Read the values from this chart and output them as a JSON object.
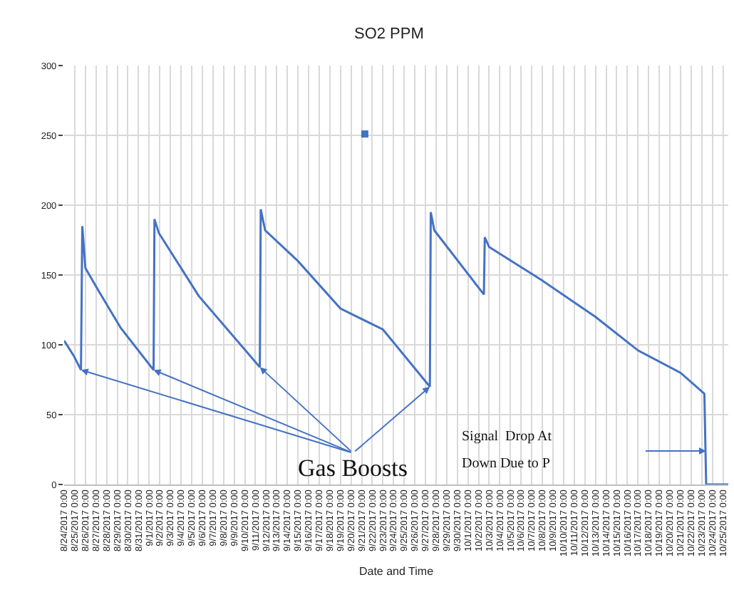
{
  "chart_data": {
    "type": "line",
    "title": "SO2 PPM",
    "xlabel": "Date and Time",
    "x": [
      "2017-08-24T00:00",
      "2017-08-24T22:00",
      "2017-08-25T14:00",
      "2017-08-25T17:00",
      "2017-08-26T00:00",
      "2017-08-27T07:00",
      "2017-08-29T08:00",
      "2017-09-01T10:00",
      "2017-09-01T12:00",
      "2017-09-01T22:00",
      "2017-09-05T16:00",
      "2017-09-11T10:00",
      "2017-09-11T12:00",
      "2017-09-11T22:00",
      "2017-09-15T00:00",
      "2017-09-19T00:00",
      "2017-09-23T00:00",
      "2017-09-27T10:00",
      "2017-09-27T12:00",
      "2017-09-27T20:00",
      "2017-10-02T12:00",
      "2017-10-02T14:00",
      "2017-10-03T00:00",
      "2017-10-08T00:00",
      "2017-10-13T00:00",
      "2017-10-17T00:00",
      "2017-10-21T00:00",
      "2017-10-23T06:00",
      "2017-10-23T10:00",
      "2017-10-25T12:00"
    ],
    "series": [
      {
        "color": "#4472c4",
        "values": [
          103,
          92,
          82,
          185,
          155,
          138,
          112,
          82,
          190,
          180,
          135,
          84,
          197,
          182,
          160,
          126,
          111,
          70,
          195,
          182,
          136,
          177,
          170,
          146,
          120,
          96,
          80,
          65,
          0,
          0
        ]
      },
      {
        "type": "scatter",
        "color": "#4472c4",
        "marker": "square",
        "x": [
          "2017-09-21T07:00"
        ],
        "values": [
          251
        ]
      }
    ],
    "xlim": [
      "2017-08-24T00:00",
      "2017-10-25T12:00"
    ],
    "ylim": [
      0,
      300
    ],
    "yticks": [
      0,
      50,
      100,
      150,
      200,
      250,
      300
    ],
    "xticks": [
      {
        "value": "2017-08-24",
        "label": "8/24/2017 0:00"
      },
      {
        "value": "2017-08-25",
        "label": "8/25/2017 0:00"
      },
      {
        "value": "2017-08-26",
        "label": "8/26/2017 0:00"
      },
      {
        "value": "2017-08-27",
        "label": "8/27/2017 0:00"
      },
      {
        "value": "2017-08-28",
        "label": "8/28/2017 0:00"
      },
      {
        "value": "2017-08-29",
        "label": "8/29/2017 0:00"
      },
      {
        "value": "2017-08-30",
        "label": "8/30/2017 0:00"
      },
      {
        "value": "2017-08-31",
        "label": "8/31/2017 0:00"
      },
      {
        "value": "2017-09-01",
        "label": "9/1/2017 0:00"
      },
      {
        "value": "2017-09-02",
        "label": "9/2/2017 0:00"
      },
      {
        "value": "2017-09-03",
        "label": "9/3/2017 0:00"
      },
      {
        "value": "2017-09-04",
        "label": "9/4/2017 0:00"
      },
      {
        "value": "2017-09-05",
        "label": "9/5/2017 0:00"
      },
      {
        "value": "2017-09-06",
        "label": "9/6/2017 0:00"
      },
      {
        "value": "2017-09-07",
        "label": "9/7/2017 0:00"
      },
      {
        "value": "2017-09-08",
        "label": "9/8/2017 0:00"
      },
      {
        "value": "2017-09-09",
        "label": "9/9/2017 0:00"
      },
      {
        "value": "2017-09-10",
        "label": "9/10/2017 0:00"
      },
      {
        "value": "2017-09-11",
        "label": "9/11/2017 0:00"
      },
      {
        "value": "2017-09-12",
        "label": "9/12/2017 0:00"
      },
      {
        "value": "2017-09-13",
        "label": "9/13/2017 0:00"
      },
      {
        "value": "2017-09-14",
        "label": "9/14/2017 0:00"
      },
      {
        "value": "2017-09-15",
        "label": "9/15/2017 0:00"
      },
      {
        "value": "2017-09-16",
        "label": "9/16/2017 0:00"
      },
      {
        "value": "2017-09-17",
        "label": "9/17/2017 0:00"
      },
      {
        "value": "2017-09-18",
        "label": "9/18/2017 0:00"
      },
      {
        "value": "2017-09-19",
        "label": "9/19/2017 0:00"
      },
      {
        "value": "2017-09-20",
        "label": "9/20/2017 0:00"
      },
      {
        "value": "2017-09-21",
        "label": "9/21/2017 0:00"
      },
      {
        "value": "2017-09-22",
        "label": "9/22/2017 0:00"
      },
      {
        "value": "2017-09-23",
        "label": "9/23/2017 0:00"
      },
      {
        "value": "2017-09-24",
        "label": "9/24/2017 0:00"
      },
      {
        "value": "2017-09-25",
        "label": "9/25/2017 0:00"
      },
      {
        "value": "2017-09-26",
        "label": "9/26/2017 0:00"
      },
      {
        "value": "2017-09-27",
        "label": "9/27/2017 0:00"
      },
      {
        "value": "2017-09-28",
        "label": "9/28/2017 0:00"
      },
      {
        "value": "2017-09-29",
        "label": "9/29/2017 0:00"
      },
      {
        "value": "2017-09-30",
        "label": "9/30/2017 0:00"
      },
      {
        "value": "2017-10-01",
        "label": "10/1/2017 0:00"
      },
      {
        "value": "2017-10-02",
        "label": "10/2/2017 0:00"
      },
      {
        "value": "2017-10-03",
        "label": "10/3/2017 0:00"
      },
      {
        "value": "2017-10-04",
        "label": "10/4/2017 0:00"
      },
      {
        "value": "2017-10-05",
        "label": "10/5/2017 0:00"
      },
      {
        "value": "2017-10-06",
        "label": "10/6/2017 0:00"
      },
      {
        "value": "2017-10-07",
        "label": "10/7/2017 0:00"
      },
      {
        "value": "2017-10-08",
        "label": "10/8/2017 0:00"
      },
      {
        "value": "2017-10-09",
        "label": "10/9/2017 0:00"
      },
      {
        "value": "2017-10-10",
        "label": "10/10/2017 0:00"
      },
      {
        "value": "2017-10-11",
        "label": "10/11/2017 0:00"
      },
      {
        "value": "2017-10-12",
        "label": "10/12/2017 0:00"
      },
      {
        "value": "2017-10-13",
        "label": "10/13/2017 0:00"
      },
      {
        "value": "2017-10-14",
        "label": "10/14/2017 0:00"
      },
      {
        "value": "2017-10-15",
        "label": "10/15/2017 0:00"
      },
      {
        "value": "2017-10-16",
        "label": "10/16/2017 0:00"
      },
      {
        "value": "2017-10-17",
        "label": "10/17/2017 0:00"
      },
      {
        "value": "2017-10-18",
        "label": "10/18/2017 0:00"
      },
      {
        "value": "2017-10-19",
        "label": "10/19/2017 0:00"
      },
      {
        "value": "2017-10-20",
        "label": "10/20/2017 0:00"
      },
      {
        "value": "2017-10-21",
        "label": "10/21/2017 0:00"
      },
      {
        "value": "2017-10-22",
        "label": "10/22/2017 0:00"
      },
      {
        "value": "2017-10-23",
        "label": "10/23/2017 0:00"
      },
      {
        "value": "2017-10-24",
        "label": "10/24/2017 0:00"
      },
      {
        "value": "2017-10-25",
        "label": "10/25/2017 0:00"
      }
    ],
    "grid": true,
    "line_style": "solid",
    "annotations": [
      {
        "text": "Gas Boosts",
        "x": "2017-08-25T14:00",
        "y": 82
      },
      "Signal  Drop At",
      "Down Due to P"
    ]
  }
}
